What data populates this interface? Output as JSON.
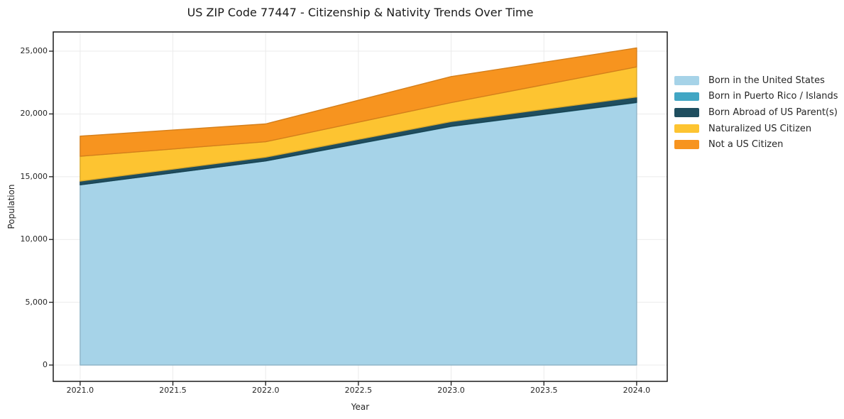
{
  "chart_data": {
    "type": "area",
    "stacked": true,
    "title": "US ZIP Code 77447 - Citizenship & Nativity Trends Over Time",
    "xlabel": "Year",
    "ylabel": "Population",
    "x": [
      2021,
      2022,
      2023,
      2024
    ],
    "series": [
      {
        "name": "Born in the United States",
        "color": "#A6D3E8",
        "values": [
          14350,
          16250,
          19000,
          20900
        ]
      },
      {
        "name": "Born in Puerto Rico / Islands",
        "color": "#41A6C4",
        "values": [
          10,
          15,
          20,
          25
        ]
      },
      {
        "name": "Born Abroad of US Parent(s)",
        "color": "#1F4E5F",
        "values": [
          290,
          290,
          370,
          430
        ]
      },
      {
        "name": "Naturalized US Citizen",
        "color": "#FDC431",
        "values": [
          1980,
          1230,
          1510,
          2390
        ]
      },
      {
        "name": "Not a US Citizen",
        "color": "#F7941F",
        "values": [
          1600,
          1420,
          2080,
          1510
        ]
      }
    ],
    "totals": [
      18230,
      19205,
      22980,
      25255
    ],
    "x_ticks": {
      "values": [
        2021.0,
        2021.5,
        2022.0,
        2022.5,
        2023.0,
        2023.5,
        2024.0
      ],
      "labels": [
        "2021.0",
        "2021.5",
        "2022.0",
        "2022.5",
        "2023.0",
        "2023.5",
        "2024.0"
      ]
    },
    "y_ticks": {
      "values": [
        0,
        5000,
        10000,
        15000,
        20000,
        25000
      ],
      "labels": [
        "0",
        "5,000",
        "10,000",
        "15,000",
        "20,000",
        "25,000"
      ]
    },
    "xlim": [
      2020.855,
      2024.165
    ],
    "ylim": [
      -1300,
      26530
    ],
    "grid": true,
    "legend_position": "right of plot",
    "colors": {
      "frame": "#1a1a1a",
      "grid": "#ebebeb",
      "text": "#262626",
      "background": "#ffffff"
    }
  }
}
